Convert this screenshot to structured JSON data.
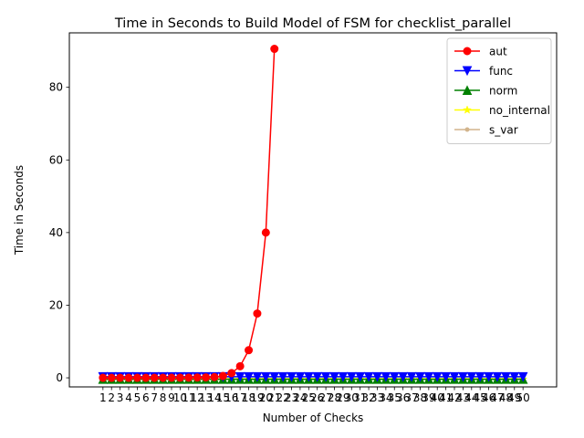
{
  "chart_data": {
    "type": "line",
    "title": "Time in Seconds to Build Model of FSM for checklist_parallel",
    "xlabel": "Number of Checks",
    "ylabel": "Time in Seconds",
    "categories": [
      "1",
      "2",
      "3",
      "4",
      "5",
      "6",
      "7",
      "8",
      "9",
      "10",
      "11",
      "12",
      "13",
      "14",
      "15",
      "16",
      "17",
      "18",
      "19",
      "20",
      "21",
      "22",
      "23",
      "24",
      "25",
      "26",
      "27",
      "28",
      "29",
      "30",
      "31",
      "32",
      "33",
      "34",
      "35",
      "36",
      "37",
      "38",
      "39",
      "40",
      "41",
      "42",
      "43",
      "44",
      "45",
      "46",
      "47",
      "48",
      "49",
      "50"
    ],
    "ylim": [
      -2.5,
      95
    ],
    "yticks": [
      0,
      20,
      40,
      60,
      80
    ],
    "legend_position": "top-right",
    "grid": false,
    "series": [
      {
        "name": "aut",
        "color": "#ff0000",
        "marker": "circle",
        "x": [
          1,
          2,
          3,
          4,
          5,
          6,
          7,
          8,
          9,
          10,
          11,
          12,
          13,
          14,
          15,
          16,
          17,
          18,
          19,
          20,
          21
        ],
        "values": [
          0.01,
          0.01,
          0.01,
          0.01,
          0.01,
          0.01,
          0.01,
          0.02,
          0.03,
          0.04,
          0.06,
          0.08,
          0.12,
          0.2,
          0.5,
          1.3,
          3.2,
          7.6,
          17.7,
          40.0,
          90.6
        ]
      },
      {
        "name": "func",
        "color": "#0000ff",
        "marker": "triangle-down",
        "x": [
          1,
          2,
          3,
          4,
          5,
          6,
          7,
          8,
          9,
          10,
          11,
          12,
          13,
          14,
          15,
          16,
          17,
          18,
          19,
          20,
          21,
          22,
          23,
          24,
          25,
          26,
          27,
          28,
          29,
          30,
          31,
          32,
          33,
          34,
          35,
          36,
          37,
          38,
          39,
          40,
          41,
          42,
          43,
          44,
          45,
          46,
          47,
          48,
          49,
          50
        ],
        "values": [
          0.3,
          0.3,
          0.3,
          0.3,
          0.3,
          0.3,
          0.3,
          0.3,
          0.3,
          0.3,
          0.3,
          0.3,
          0.3,
          0.3,
          0.3,
          0.3,
          0.3,
          0.3,
          0.3,
          0.3,
          0.3,
          0.3,
          0.3,
          0.3,
          0.3,
          0.3,
          0.3,
          0.3,
          0.3,
          0.3,
          0.3,
          0.3,
          0.3,
          0.3,
          0.3,
          0.3,
          0.3,
          0.3,
          0.3,
          0.3,
          0.3,
          0.3,
          0.3,
          0.3,
          0.3,
          0.3,
          0.3,
          0.3,
          0.3,
          0.3
        ]
      },
      {
        "name": "norm",
        "color": "#008000",
        "marker": "triangle-up",
        "x": [
          1,
          2,
          3,
          4,
          5,
          6,
          7,
          8,
          9,
          10,
          11,
          12,
          13,
          14,
          15,
          16,
          17,
          18,
          19,
          20,
          21,
          22,
          23,
          24,
          25,
          26,
          27,
          28,
          29,
          30,
          31,
          32,
          33,
          34,
          35,
          36,
          37,
          38,
          39,
          40,
          41,
          42,
          43,
          44,
          45,
          46,
          47,
          48,
          49,
          50
        ],
        "values": [
          -0.4,
          -0.4,
          -0.4,
          -0.4,
          -0.4,
          -0.4,
          -0.4,
          -0.4,
          -0.4,
          -0.4,
          -0.4,
          -0.4,
          -0.4,
          -0.4,
          -0.4,
          -0.4,
          -0.4,
          -0.4,
          -0.4,
          -0.4,
          -0.4,
          -0.4,
          -0.4,
          -0.4,
          -0.4,
          -0.4,
          -0.4,
          -0.4,
          -0.4,
          -0.4,
          -0.4,
          -0.4,
          -0.4,
          -0.4,
          -0.4,
          -0.4,
          -0.4,
          -0.4,
          -0.4,
          -0.4,
          -0.4,
          -0.4,
          -0.4,
          -0.4,
          -0.4,
          -0.4,
          -0.4,
          -0.4,
          -0.4,
          -0.4
        ]
      },
      {
        "name": "no_internal",
        "color": "#ffff00",
        "marker": "star",
        "x": [
          1,
          2,
          3,
          4,
          5,
          6,
          7,
          8,
          9,
          10,
          11,
          12,
          13,
          14,
          15,
          16,
          17,
          18,
          19,
          20,
          21,
          22,
          23,
          24,
          25,
          26,
          27,
          28,
          29,
          30,
          31,
          32,
          33,
          34,
          35,
          36,
          37,
          38,
          39,
          40,
          41,
          42,
          43,
          44,
          45,
          46,
          47,
          48,
          49,
          50
        ],
        "values": [
          -0.4,
          -0.4,
          -0.4,
          -0.4,
          -0.4,
          -0.4,
          -0.4,
          -0.4,
          -0.4,
          -0.4,
          -0.4,
          -0.4,
          -0.4,
          -0.4,
          -0.4,
          -0.4,
          -0.4,
          -0.4,
          -0.4,
          -0.4,
          -0.4,
          -0.4,
          -0.4,
          -0.4,
          -0.4,
          -0.4,
          -0.4,
          -0.4,
          -0.4,
          -0.4,
          -0.4,
          -0.4,
          -0.4,
          -0.4,
          -0.4,
          -0.4,
          -0.4,
          -0.4,
          -0.4,
          -0.4,
          -0.4,
          -0.4,
          -0.4,
          -0.4,
          -0.4,
          -0.4,
          -0.4,
          -0.4,
          -0.4,
          -0.4
        ]
      },
      {
        "name": "s_var",
        "color": "#d2b48c",
        "marker": "point",
        "x": [
          1,
          2,
          3,
          4,
          5,
          6,
          7,
          8,
          9,
          10,
          11,
          12,
          13,
          14,
          15,
          16,
          17,
          18,
          19,
          20,
          21,
          22,
          23,
          24,
          25,
          26,
          27,
          28,
          29,
          30,
          31,
          32,
          33,
          34,
          35,
          36,
          37,
          38,
          39,
          40,
          41,
          42,
          43,
          44,
          45,
          46,
          47,
          48,
          49,
          50
        ],
        "values": [
          -0.4,
          -0.4,
          -0.4,
          -0.4,
          -0.4,
          -0.4,
          -0.4,
          -0.4,
          -0.4,
          -0.4,
          -0.4,
          -0.4,
          -0.4,
          -0.4,
          -0.4,
          -0.4,
          -0.4,
          -0.4,
          -0.4,
          -0.4,
          -0.4,
          -0.4,
          -0.4,
          -0.4,
          -0.4,
          -0.4,
          -0.4,
          -0.4,
          -0.4,
          -0.4,
          -0.4,
          -0.4,
          -0.4,
          -0.4,
          -0.4,
          -0.4,
          -0.4,
          -0.4,
          -0.4,
          -0.4,
          -0.4,
          -0.4,
          -0.4,
          -0.4,
          -0.4,
          -0.4,
          -0.4,
          -0.4,
          -0.4,
          -0.4
        ]
      }
    ]
  }
}
